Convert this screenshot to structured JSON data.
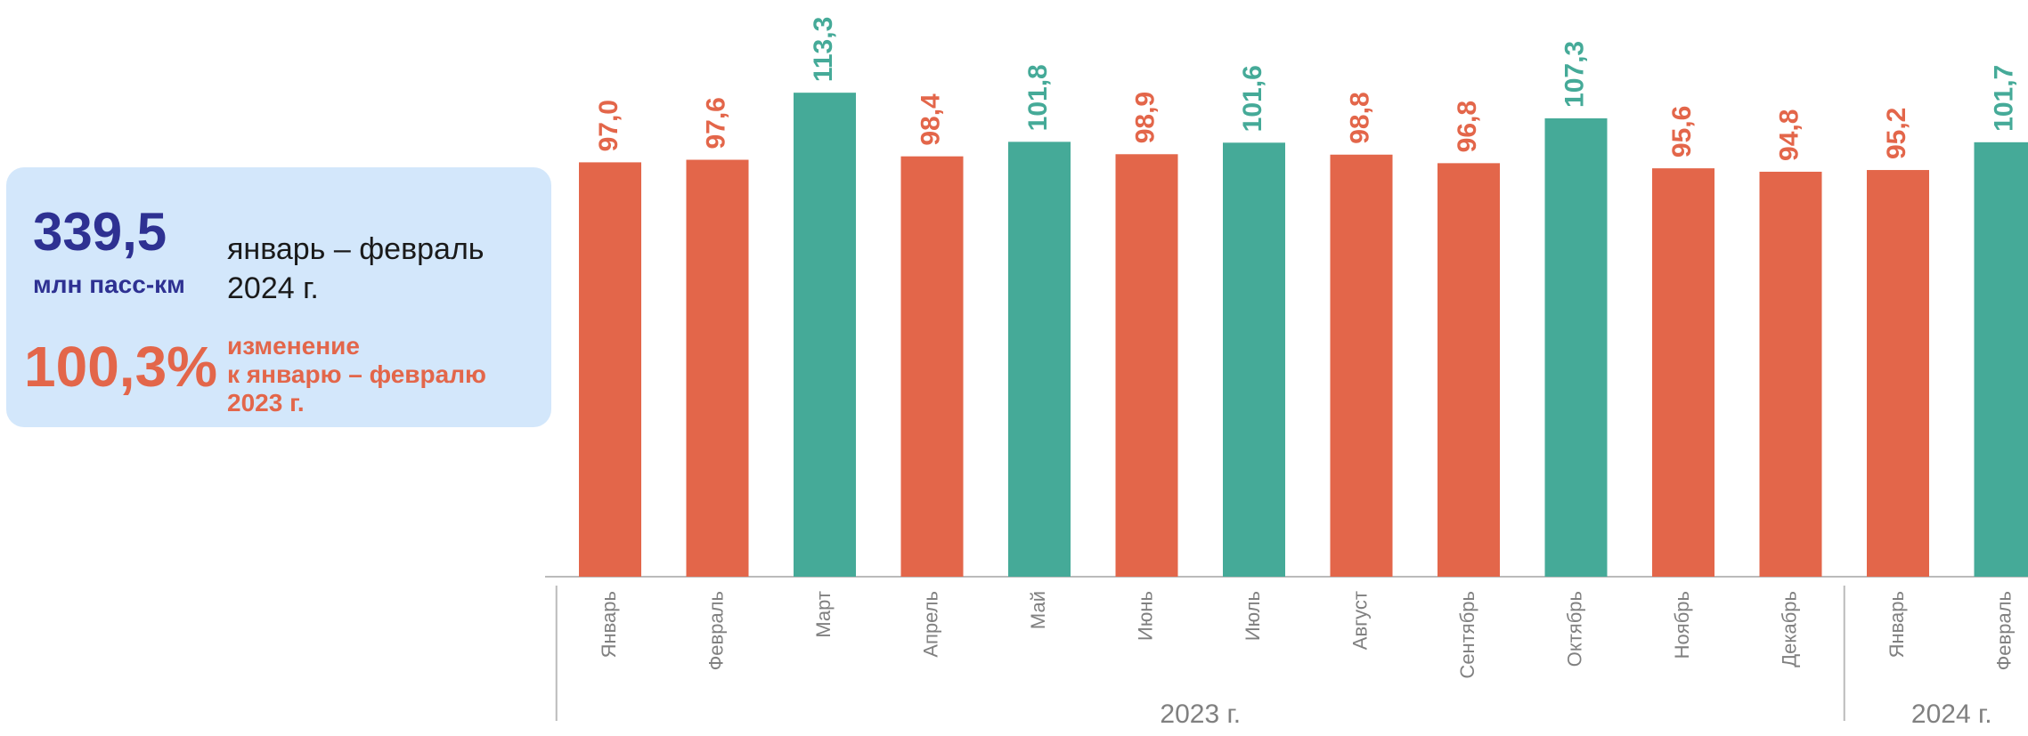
{
  "summary": {
    "value": "339,5",
    "unit": "млн пасс-км",
    "period_line1": "январь – февраль",
    "period_line2": "2024 г.",
    "percent": "100,3%",
    "change_line1": "изменение",
    "change_line2": "к январю – февралю",
    "change_line3": "2023 г."
  },
  "chart_data": {
    "type": "bar",
    "categories": [
      "Январь",
      "Февраль",
      "Март",
      "Апрель",
      "Май",
      "Июнь",
      "Июль",
      "Август",
      "Сентябрь",
      "Октябрь",
      "Ноябрь",
      "Декабрь",
      "Январь",
      "Февраль"
    ],
    "values": [
      97.0,
      97.6,
      113.3,
      98.4,
      101.8,
      98.9,
      101.6,
      98.8,
      96.8,
      107.3,
      95.6,
      94.8,
      95.2,
      101.7
    ],
    "value_labels": [
      "97,0",
      "97,6",
      "113,3",
      "98,4",
      "101,8",
      "98,9",
      "101,6",
      "98,8",
      "96,8",
      "107,3",
      "95,6",
      "94,8",
      "95,2",
      "101,7"
    ],
    "groups": [
      {
        "label": "2023 г.",
        "count": 12
      },
      {
        "label": "2024 г.",
        "count": 2
      }
    ],
    "color_rule": "values >= 100 green, below 100 orange",
    "colors": {
      "below_100": "#e3664a",
      "above_100": "#45aa98",
      "axis": "#bbbbbb",
      "tick_text": "#808080"
    },
    "ylim": [
      0,
      115
    ]
  }
}
